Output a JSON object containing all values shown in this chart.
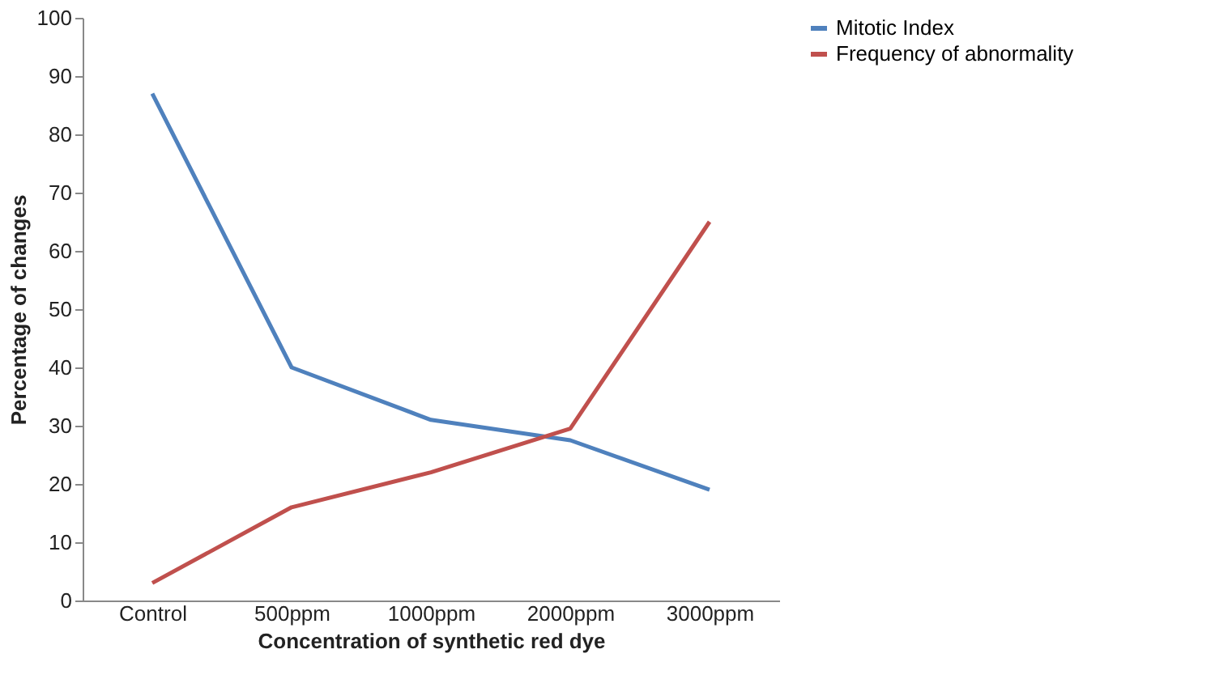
{
  "chart_data": {
    "type": "line",
    "xlabel": "Concentration of synthetic red dye",
    "ylabel": "Percentage of changes",
    "categories": [
      "Control",
      "500ppm",
      "1000ppm",
      "2000ppm",
      "3000ppm"
    ],
    "series": [
      {
        "name": "Mitotic Index",
        "color": "#4f81bd",
        "values": [
          87,
          40,
          31,
          27.5,
          19
        ]
      },
      {
        "name": "Frequency of abnormality",
        "color": "#c0504d",
        "values": [
          3,
          16,
          22,
          29.5,
          65
        ]
      }
    ],
    "ylim": [
      0,
      100
    ],
    "yticks": [
      0,
      10,
      20,
      30,
      40,
      50,
      60,
      70,
      80,
      90,
      100
    ],
    "grid": false,
    "legend": "right",
    "marker": "none",
    "line_style": "solid"
  }
}
